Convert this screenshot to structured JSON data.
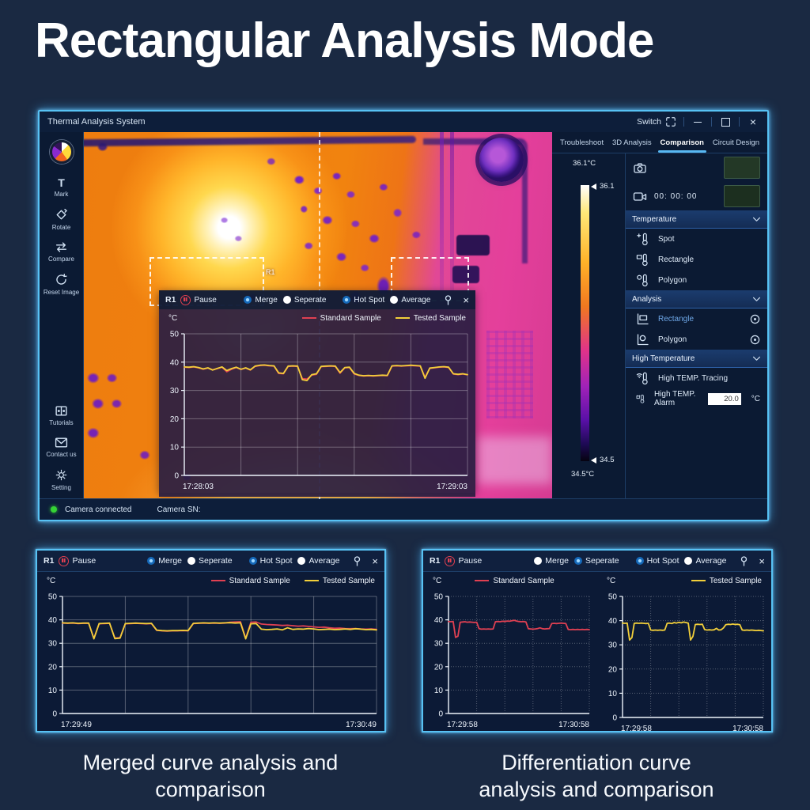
{
  "page": {
    "title": "Rectangular Analysis Mode",
    "captions": {
      "left": "Merged curve analysis and comparison",
      "right": "Differentiation curve analysis and comparison"
    }
  },
  "titlebar": {
    "app": "Thermal Analysis System",
    "switch": "Switch",
    "close_glyph": "×"
  },
  "toolbar": {
    "items": [
      "Mark",
      "Rotate",
      "Compare",
      "Reset Image"
    ],
    "bottom": [
      "Tutorials",
      "Contact us",
      "Setting"
    ]
  },
  "tabs": {
    "items": [
      "Troubleshoot",
      "3D Analysis",
      "Comparison",
      "Circuit Design"
    ],
    "active": "Comparison"
  },
  "scale": {
    "max": "36.1°C",
    "max_tick": "36.1",
    "min_tick": "34.5",
    "min": "34.5°C"
  },
  "panel": {
    "record_time": "00: 00: 00",
    "sections": [
      {
        "title": "Temperature",
        "items": [
          "Spot",
          "Rectangle",
          "Polygon"
        ]
      },
      {
        "title": "Analysis",
        "items": [
          "Rectangle",
          "Polygon"
        ]
      },
      {
        "title": "High Temperature",
        "items": [
          "High TEMP. Tracing",
          "High TEMP. Alarm"
        ]
      }
    ],
    "alarm_value": "20.0",
    "alarm_unit": "°C"
  },
  "thermal": {
    "roi_label": "R1"
  },
  "status": {
    "connected": "Camera connected",
    "sn": "Camera SN:"
  },
  "panels": {
    "popup": {
      "roi": "R1",
      "pause": "Pause",
      "radios": [
        {
          "label": "Merge",
          "on": true
        },
        {
          "label": "Seperate",
          "on": false
        },
        {
          "label": "Hot Spot",
          "on": true
        },
        {
          "label": "Average",
          "on": false
        }
      ]
    },
    "bottom_left": {
      "roi": "R1",
      "pause": "Pause",
      "radios": [
        {
          "label": "Merge",
          "on": true
        },
        {
          "label": "Seperate",
          "on": false
        },
        {
          "label": "Hot Spot",
          "on": true
        },
        {
          "label": "Average",
          "on": false
        }
      ]
    },
    "bottom_right": {
      "roi": "R1",
      "pause": "Pause",
      "radios": [
        {
          "label": "Merge",
          "on": false
        },
        {
          "label": "Seperate",
          "on": true
        },
        {
          "label": "Hot Spot",
          "on": true
        },
        {
          "label": "Average",
          "on": false
        }
      ]
    }
  },
  "accent_color": "#57c2f4",
  "chart_data": [
    {
      "id": "popup-merged",
      "type": "line",
      "unit": "°C",
      "x_start": "17:28:03",
      "x_end": "17:29:03",
      "ylim": [
        0,
        50
      ],
      "yticks": [
        0,
        10,
        20,
        30,
        40,
        50
      ],
      "grid_dotted": false,
      "series": [
        {
          "name": "Standard Sample",
          "color": "#e04052",
          "values": [
            38.2,
            38.1,
            38.3,
            38.0,
            37.5,
            37.9,
            37.3,
            37.7,
            38.2,
            36.6,
            37.5,
            38.1,
            37.4,
            37.9,
            37.2,
            38.5,
            38.8,
            38.9,
            38.7,
            38.6,
            36.0,
            35.9,
            38.5,
            38.6,
            38.5,
            34.2,
            34.0,
            35.4,
            35.7,
            38.4,
            38.5,
            38.6,
            38.5,
            36.1,
            38.0,
            38.1,
            35.8,
            35.3,
            35.1,
            35.2,
            35.1,
            35.2,
            35.3,
            35.2,
            38.6,
            38.7,
            38.6,
            38.7,
            38.8,
            38.7,
            38.6,
            34.6,
            37.8,
            38.0,
            38.2,
            38.3,
            38.1,
            35.8,
            35.6,
            35.8,
            35.5
          ]
        },
        {
          "name": "Tested Sample",
          "color": "#f2cf3a",
          "values": [
            38.3,
            38.2,
            38.4,
            38.1,
            37.6,
            38.0,
            37.2,
            37.8,
            38.3,
            37.0,
            37.7,
            38.2,
            37.5,
            38.0,
            37.3,
            38.6,
            38.9,
            39.0,
            38.8,
            38.7,
            36.2,
            36.0,
            38.6,
            38.7,
            38.6,
            33.8,
            33.5,
            35.6,
            35.9,
            38.5,
            38.6,
            38.7,
            38.6,
            36.3,
            38.1,
            38.2,
            36.0,
            35.4,
            35.2,
            35.3,
            35.2,
            35.3,
            35.4,
            35.3,
            38.7,
            38.8,
            38.7,
            38.8,
            38.9,
            38.8,
            38.7,
            34.3,
            37.9,
            38.1,
            38.3,
            38.4,
            38.2,
            35.9,
            35.7,
            35.9,
            35.6
          ]
        }
      ]
    },
    {
      "id": "bottom-left-merged",
      "type": "line",
      "unit": "°C",
      "x_start": "17:29:49",
      "x_end": "17:30:49",
      "ylim": [
        0,
        50
      ],
      "yticks": [
        0,
        10,
        20,
        30,
        40,
        50
      ],
      "grid_dotted": false,
      "series": [
        {
          "name": "Standard Sample",
          "color": "#e04052",
          "values": [
            38.6,
            38.5,
            38.6,
            38.4,
            38.5,
            38.5,
            32.1,
            38.3,
            38.4,
            38.5,
            32.2,
            32.4,
            38.3,
            38.4,
            38.5,
            38.4,
            38.3,
            38.4,
            35.5,
            35.3,
            35.2,
            35.3,
            35.3,
            35.4,
            35.3,
            38.4,
            38.5,
            38.6,
            38.5,
            38.6,
            38.5,
            38.6,
            39.0,
            39.1,
            39.2,
            32.1,
            39.0,
            39.1,
            38.2,
            38.0,
            37.9,
            37.8,
            37.6,
            37.7,
            37.5,
            37.3,
            37.4,
            37.2,
            37.0,
            36.8,
            36.9,
            36.6,
            36.4,
            36.5,
            36.3,
            36.2,
            36.3,
            36.1,
            36.0,
            36.1,
            35.9
          ]
        },
        {
          "name": "Tested Sample",
          "color": "#f2cf3a",
          "values": [
            38.7,
            38.6,
            38.7,
            38.5,
            38.6,
            38.6,
            31.9,
            38.4,
            38.5,
            38.6,
            32.0,
            32.2,
            38.4,
            38.5,
            38.6,
            38.5,
            38.4,
            38.5,
            35.6,
            35.4,
            35.3,
            35.4,
            35.4,
            35.5,
            35.4,
            38.5,
            38.6,
            38.7,
            38.6,
            38.7,
            38.6,
            38.7,
            38.8,
            38.6,
            38.7,
            31.9,
            38.3,
            38.4,
            36.0,
            35.8,
            35.9,
            36.1,
            35.7,
            36.6,
            35.9,
            36.1,
            36.0,
            36.3,
            36.1,
            35.8,
            35.9,
            36.0,
            35.8,
            35.9,
            36.1,
            35.9,
            36.2,
            36.0,
            35.8,
            35.9,
            35.7
          ]
        }
      ]
    },
    {
      "id": "bottom-right-standard",
      "type": "line",
      "unit": "°C",
      "x_start": "17:29:58",
      "x_end": "17:30:58",
      "ylim": [
        0,
        50
      ],
      "yticks": [
        0,
        10,
        20,
        30,
        40,
        50
      ],
      "grid_dotted": true,
      "series": [
        {
          "name": "Standard Sample",
          "color": "#e04052",
          "values": [
            39.3,
            39.2,
            39.3,
            32.5,
            33.0,
            39.0,
            39.1,
            39.2,
            39.0,
            39.1,
            39.0,
            38.9,
            39.0,
            36.2,
            36.0,
            36.1,
            36.0,
            36.1,
            36.0,
            36.1,
            39.2,
            39.3,
            39.2,
            39.4,
            39.3,
            39.5,
            39.4,
            39.6,
            39.8,
            39.5,
            39.3,
            39.2,
            39.3,
            39.1,
            36.2,
            36.1,
            36.0,
            36.1,
            36.3,
            36.6,
            36.2,
            36.1,
            36.2,
            36.3,
            38.4,
            38.5,
            38.4,
            38.5,
            38.6,
            38.5,
            38.4,
            35.9,
            35.8,
            35.9,
            35.8,
            35.9,
            35.8,
            35.9,
            35.8,
            35.9,
            35.8
          ]
        }
      ]
    },
    {
      "id": "bottom-right-tested",
      "type": "line",
      "unit": "°C",
      "x_start": "17:29:58",
      "x_end": "17:30:58",
      "ylim": [
        0,
        50
      ],
      "yticks": [
        0,
        10,
        20,
        30,
        40,
        50
      ],
      "grid_dotted": true,
      "series": [
        {
          "name": "Tested Sample",
          "color": "#f2cf3a",
          "values": [
            39.0,
            38.9,
            39.0,
            32.0,
            33.0,
            38.9,
            39.0,
            38.9,
            39.0,
            38.9,
            38.8,
            38.9,
            36.1,
            36.0,
            36.1,
            36.0,
            36.1,
            36.0,
            36.1,
            38.9,
            39.0,
            38.8,
            39.2,
            39.0,
            39.3,
            39.1,
            39.4,
            39.2,
            39.0,
            32.0,
            33.5,
            38.4,
            38.5,
            38.4,
            38.5,
            36.3,
            36.1,
            36.2,
            36.1,
            36.2,
            36.8,
            36.1,
            36.2,
            37.0,
            38.3,
            38.5,
            38.4,
            38.6,
            38.4,
            38.5,
            38.3,
            36.1,
            36.0,
            36.1,
            36.0,
            36.1,
            36.0,
            35.9,
            36.0,
            35.9,
            35.8
          ]
        }
      ]
    }
  ]
}
